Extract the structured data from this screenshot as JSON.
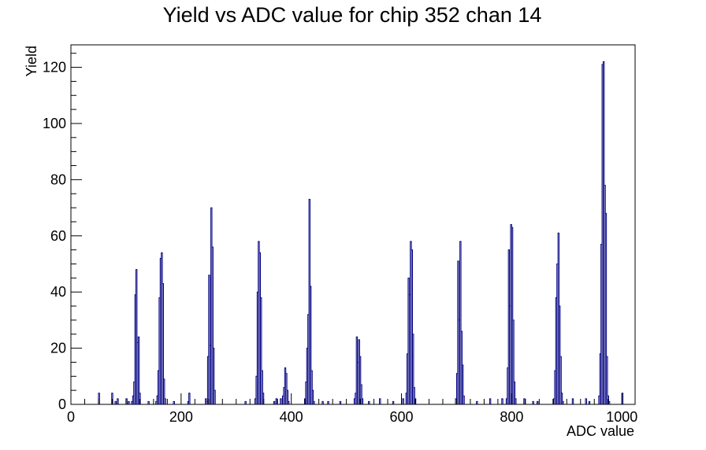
{
  "chart_data": {
    "type": "histogram",
    "title": "Yield vs ADC value for chip 352 chan 14",
    "xlabel": "ADC value",
    "ylabel": "Yield",
    "xlim": [
      0,
      1024
    ],
    "ylim": [
      0,
      128
    ],
    "x_ticks": [
      0,
      200,
      400,
      600,
      800,
      1000
    ],
    "y_ticks": [
      0,
      20,
      40,
      60,
      80,
      100,
      120
    ],
    "grid": false,
    "legend": "none",
    "line_color": "#000080",
    "bin_width": 2,
    "peaks": [
      {
        "center": 118,
        "bins": [
          [
            110,
            1
          ],
          [
            112,
            3
          ],
          [
            114,
            8
          ],
          [
            116,
            39
          ],
          [
            118,
            48
          ],
          [
            120,
            22
          ],
          [
            122,
            24
          ],
          [
            124,
            4
          ]
        ]
      },
      {
        "center": 164,
        "bins": [
          [
            154,
            1
          ],
          [
            156,
            3
          ],
          [
            158,
            12
          ],
          [
            160,
            38
          ],
          [
            162,
            52
          ],
          [
            164,
            54
          ],
          [
            166,
            43
          ],
          [
            168,
            9
          ],
          [
            170,
            2
          ]
        ]
      },
      {
        "center": 254,
        "bins": [
          [
            244,
            2
          ],
          [
            246,
            1
          ],
          [
            248,
            17
          ],
          [
            250,
            46
          ],
          [
            252,
            21
          ],
          [
            254,
            70
          ],
          [
            256,
            56
          ],
          [
            258,
            20
          ],
          [
            260,
            5
          ]
        ]
      },
      {
        "center": 344,
        "bins": [
          [
            334,
            2
          ],
          [
            336,
            10
          ],
          [
            338,
            40
          ],
          [
            340,
            58
          ],
          [
            342,
            54
          ],
          [
            344,
            38
          ],
          [
            346,
            12
          ],
          [
            348,
            4
          ]
        ]
      },
      {
        "center": 391,
        "bins": [
          [
            384,
            3
          ],
          [
            386,
            6
          ],
          [
            388,
            13
          ],
          [
            390,
            11
          ],
          [
            392,
            5
          ],
          [
            394,
            1
          ]
        ]
      },
      {
        "center": 434,
        "bins": [
          [
            424,
            2
          ],
          [
            426,
            8
          ],
          [
            428,
            20
          ],
          [
            430,
            32
          ],
          [
            432,
            73
          ],
          [
            434,
            42
          ],
          [
            436,
            12
          ],
          [
            438,
            5
          ],
          [
            440,
            1
          ]
        ]
      },
      {
        "center": 523,
        "bins": [
          [
            514,
            2
          ],
          [
            516,
            4
          ],
          [
            518,
            24
          ],
          [
            520,
            15
          ],
          [
            522,
            23
          ],
          [
            524,
            17
          ],
          [
            526,
            7
          ],
          [
            528,
            2
          ]
        ]
      },
      {
        "center": 617,
        "bins": [
          [
            608,
            4
          ],
          [
            610,
            18
          ],
          [
            612,
            45
          ],
          [
            614,
            39
          ],
          [
            616,
            58
          ],
          [
            618,
            55
          ],
          [
            620,
            25
          ],
          [
            622,
            6
          ],
          [
            624,
            2
          ]
        ]
      },
      {
        "center": 709,
        "bins": [
          [
            698,
            2
          ],
          [
            700,
            11
          ],
          [
            702,
            51
          ],
          [
            704,
            30
          ],
          [
            706,
            58
          ],
          [
            708,
            26
          ],
          [
            710,
            14
          ],
          [
            712,
            3
          ]
        ]
      },
      {
        "center": 800,
        "bins": [
          [
            790,
            2
          ],
          [
            792,
            13
          ],
          [
            794,
            55
          ],
          [
            796,
            35
          ],
          [
            798,
            64
          ],
          [
            800,
            63
          ],
          [
            802,
            30
          ],
          [
            804,
            8
          ],
          [
            806,
            2
          ]
        ]
      },
      {
        "center": 886,
        "bins": [
          [
            876,
            2
          ],
          [
            878,
            12
          ],
          [
            880,
            38
          ],
          [
            882,
            50
          ],
          [
            884,
            61
          ],
          [
            886,
            35
          ],
          [
            888,
            17
          ],
          [
            890,
            4
          ],
          [
            892,
            1
          ]
        ]
      },
      {
        "center": 970,
        "bins": [
          [
            958,
            3
          ],
          [
            960,
            18
          ],
          [
            962,
            57
          ],
          [
            964,
            121
          ],
          [
            966,
            122
          ],
          [
            968,
            78
          ],
          [
            970,
            68
          ],
          [
            972,
            17
          ],
          [
            974,
            3
          ],
          [
            976,
            1
          ]
        ]
      }
    ],
    "isolated_bins": [
      [
        50,
        4
      ],
      [
        74,
        4
      ],
      [
        80,
        1
      ],
      [
        84,
        2
      ],
      [
        100,
        2
      ],
      [
        104,
        1
      ],
      [
        140,
        1
      ],
      [
        186,
        1
      ],
      [
        214,
        4
      ],
      [
        212,
        1
      ],
      [
        214,
        4
      ],
      [
        316,
        1
      ],
      [
        368,
        1
      ],
      [
        372,
        2
      ],
      [
        380,
        2
      ],
      [
        456,
        1
      ],
      [
        466,
        1
      ],
      [
        488,
        1
      ],
      [
        540,
        1
      ],
      [
        560,
        2
      ],
      [
        584,
        1
      ],
      [
        602,
        2
      ],
      [
        700,
        1
      ],
      [
        736,
        1
      ],
      [
        760,
        2
      ],
      [
        782,
        2
      ],
      [
        822,
        2
      ],
      [
        838,
        1
      ],
      [
        846,
        1
      ],
      [
        910,
        2
      ],
      [
        934,
        2
      ],
      [
        940,
        1
      ],
      [
        1000,
        4
      ]
    ]
  }
}
